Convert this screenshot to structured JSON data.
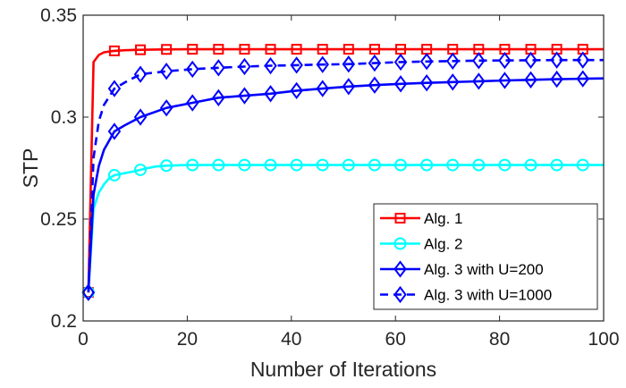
{
  "chart_data": {
    "type": "line",
    "title": "",
    "xlabel": "Number of Iterations",
    "ylabel": "STP",
    "xlim": [
      0,
      100
    ],
    "ylim": [
      0.2,
      0.35
    ],
    "xticks": [
      0,
      20,
      40,
      60,
      80,
      100
    ],
    "xtick_labels": [
      "0",
      "20",
      "40",
      "60",
      "80",
      "100"
    ],
    "yticks": [
      0.2,
      0.25,
      0.3,
      0.35
    ],
    "ytick_labels": [
      "0.2",
      "0.25",
      "0.3",
      "0.35"
    ],
    "grid": false,
    "legend_position": "bottom-right",
    "series": [
      {
        "name": "Alg. 1",
        "color": "#ff0000",
        "line_style": "solid",
        "marker": "square",
        "x": [
          1,
          2,
          3,
          4,
          5,
          6,
          8,
          10,
          15,
          20,
          30,
          40,
          50,
          60,
          70,
          80,
          90,
          100
        ],
        "y": [
          0.214,
          0.327,
          0.3305,
          0.3318,
          0.3322,
          0.3325,
          0.3328,
          0.333,
          0.3332,
          0.3333,
          0.3333,
          0.3333,
          0.3333,
          0.3333,
          0.3333,
          0.3333,
          0.3333,
          0.3333
        ],
        "marker_x": [
          1,
          6,
          11,
          16,
          21,
          26,
          31,
          36,
          41,
          46,
          51,
          56,
          61,
          66,
          71,
          76,
          81,
          86,
          91,
          96
        ]
      },
      {
        "name": "Alg. 2",
        "color": "#00ffff",
        "line_style": "solid",
        "marker": "circle",
        "x": [
          1,
          2,
          3,
          4,
          5,
          6,
          8,
          10,
          12,
          14,
          16,
          20,
          30,
          40,
          50,
          60,
          70,
          80,
          90,
          100
        ],
        "y": [
          0.214,
          0.255,
          0.263,
          0.267,
          0.27,
          0.2715,
          0.2725,
          0.2735,
          0.2748,
          0.2758,
          0.2762,
          0.2765,
          0.2765,
          0.2765,
          0.2765,
          0.2765,
          0.2765,
          0.2765,
          0.2765,
          0.2765
        ],
        "marker_x": [
          1,
          6,
          11,
          16,
          21,
          26,
          31,
          36,
          41,
          46,
          51,
          56,
          61,
          66,
          71,
          76,
          81,
          86,
          91,
          96
        ]
      },
      {
        "name": "Alg. 3 with U=200",
        "color": "#0000ff",
        "line_style": "solid",
        "marker": "diamond",
        "x": [
          1,
          2,
          3,
          4,
          6,
          8,
          11,
          16,
          21,
          26,
          31,
          36,
          41,
          46,
          51,
          56,
          61,
          66,
          71,
          76,
          81,
          86,
          91,
          96,
          100
        ],
        "y": [
          0.214,
          0.262,
          0.276,
          0.284,
          0.293,
          0.296,
          0.3,
          0.3045,
          0.307,
          0.3095,
          0.3105,
          0.3115,
          0.313,
          0.314,
          0.315,
          0.3157,
          0.3163,
          0.3168,
          0.3172,
          0.3176,
          0.318,
          0.3183,
          0.3186,
          0.3188,
          0.319
        ],
        "marker_x": [
          1,
          6,
          11,
          16,
          21,
          26,
          31,
          36,
          41,
          46,
          51,
          56,
          61,
          66,
          71,
          76,
          81,
          86,
          91,
          96
        ]
      },
      {
        "name": "Alg. 3 with U=1000",
        "color": "#0000ff",
        "line_style": "dashed",
        "marker": "diamond",
        "x": [
          1,
          2,
          3,
          4,
          6,
          8,
          11,
          16,
          21,
          26,
          31,
          36,
          41,
          46,
          51,
          56,
          61,
          66,
          71,
          76,
          81,
          86,
          91,
          96,
          100
        ],
        "y": [
          0.214,
          0.28,
          0.298,
          0.306,
          0.314,
          0.317,
          0.321,
          0.3225,
          0.3235,
          0.3242,
          0.3248,
          0.3252,
          0.3255,
          0.3258,
          0.326,
          0.3265,
          0.327,
          0.3273,
          0.3275,
          0.3277,
          0.3278,
          0.3279,
          0.328,
          0.328,
          0.328
        ],
        "marker_x": [
          1,
          6,
          11,
          16,
          21,
          26,
          31,
          36,
          41,
          46,
          51,
          56,
          61,
          66,
          71,
          76,
          81,
          86,
          91,
          96
        ]
      }
    ]
  }
}
